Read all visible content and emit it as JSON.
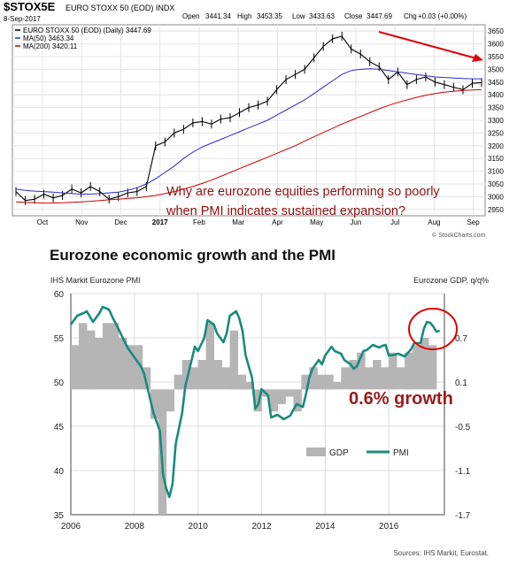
{
  "chart_data": [
    {
      "type": "line",
      "symbol": "$STOX5E",
      "instrument": "EURO STOXX 50 (EOD) INDX",
      "date": "8-Sep-2017",
      "ohlc": {
        "open_label": "Open",
        "open": "3441.34",
        "high_label": "High",
        "high": "3453.35",
        "low_label": "Low",
        "low": "3433.63",
        "close_label": "Close",
        "close": "3447.69",
        "chg_label": "Chg",
        "chg": "+0.03 (+0.00%)"
      },
      "legend": [
        {
          "label": "EURO STOXX 50 (EOD) (Daily) 3447.69",
          "color": "#000000"
        },
        {
          "label": "MA(50) 3463.34",
          "color": "#2a2ac8"
        },
        {
          "label": "MA(200) 3420.11",
          "color": "#cc0000"
        }
      ],
      "watermark": "© StockCharts.com",
      "annotation": [
        "Why are eurozone equities performing so poorly",
        "when PMI indicates sustained expansion?"
      ],
      "xtick_labels": [
        "Oct",
        "Nov",
        "Dec",
        "2017",
        "Feb",
        "Mar",
        "Apr",
        "May",
        "Jun",
        "Jul",
        "Aug",
        "Sep"
      ],
      "ytick_labels": [
        "3650",
        "3600",
        "3550",
        "3500",
        "3450",
        "3400",
        "3350",
        "3300",
        "3250",
        "3200",
        "3150",
        "3100",
        "3050",
        "3000",
        "2950"
      ],
      "ylim": [
        2925,
        3675
      ],
      "x": [
        0,
        1,
        2,
        3,
        4,
        5,
        6,
        7,
        8,
        9,
        10,
        11,
        12,
        13,
        14,
        15,
        16,
        17,
        18,
        19,
        20,
        21,
        22,
        23,
        24,
        25,
        26,
        27,
        28,
        29,
        30,
        31,
        32,
        33,
        34,
        35,
        36,
        37,
        38,
        39,
        40,
        41,
        42,
        43,
        44,
        45,
        46,
        47,
        48,
        49,
        50
      ],
      "series": [
        {
          "name": "EURO STOXX 50",
          "values": [
            3020,
            2985,
            2990,
            3010,
            2995,
            3005,
            3030,
            3015,
            3040,
            3020,
            2990,
            3000,
            3015,
            3020,
            3040,
            3200,
            3215,
            3250,
            3265,
            3290,
            3295,
            3285,
            3305,
            3310,
            3330,
            3350,
            3360,
            3375,
            3420,
            3460,
            3480,
            3500,
            3545,
            3590,
            3620,
            3630,
            3580,
            3560,
            3530,
            3510,
            3460,
            3490,
            3440,
            3460,
            3470,
            3450,
            3440,
            3430,
            3420,
            3445,
            3448
          ]
        },
        {
          "name": "MA(50)",
          "values": [
            3030,
            3025,
            3022,
            3020,
            3018,
            3015,
            3012,
            3010,
            3010,
            3012,
            3015,
            3018,
            3025,
            3035,
            3050,
            3070,
            3095,
            3120,
            3150,
            3175,
            3195,
            3210,
            3225,
            3240,
            3255,
            3270,
            3285,
            3300,
            3320,
            3340,
            3360,
            3380,
            3405,
            3430,
            3455,
            3480,
            3495,
            3500,
            3502,
            3500,
            3495,
            3490,
            3485,
            3480,
            3475,
            3470,
            3468,
            3466,
            3464,
            3463,
            3463
          ]
        },
        {
          "name": "MA(200)",
          "values": [
            2980,
            2978,
            2976,
            2975,
            2975,
            2976,
            2978,
            2980,
            2982,
            2985,
            2988,
            2990,
            2993,
            2996,
            3000,
            3005,
            3012,
            3020,
            3030,
            3040,
            3052,
            3065,
            3080,
            3095,
            3110,
            3125,
            3140,
            3155,
            3170,
            3185,
            3200,
            3218,
            3235,
            3252,
            3268,
            3285,
            3300,
            3315,
            3330,
            3345,
            3358,
            3370,
            3380,
            3390,
            3398,
            3405,
            3410,
            3414,
            3417,
            3419,
            3420
          ]
        }
      ]
    },
    {
      "type": "bar",
      "title": "Eurozone economic growth and the PMI",
      "left_axis_label": "IHS Markit  Eurozone PMI",
      "right_axis_label": "Eurozone GDP, q/q%",
      "annotation": "0.6% growth",
      "source": "Sources: IHS Markit, Eurostat.",
      "legend": [
        {
          "label": "GDP",
          "color": "#b5b5b5"
        },
        {
          "label": "PMI",
          "color": "#1a8a7e"
        }
      ],
      "left_ticks": [
        "60",
        "55",
        "50",
        "45",
        "40",
        "35"
      ],
      "right_ticks": [
        "0.7",
        "0.1",
        "-0.5",
        "-1.1",
        "-1.7"
      ],
      "xtick_labels": [
        "2006",
        "2008",
        "2010",
        "2012",
        "2014",
        "2016"
      ],
      "pmi_ylim": [
        35,
        60
      ],
      "gdp_ylim": [
        -1.7,
        1.3
      ],
      "x_start": 2006,
      "x_end": 2017.75,
      "series": [
        {
          "name": "GDP",
          "values": [
            0.6,
            0.9,
            0.8,
            0.7,
            0.9,
            0.9,
            0.7,
            0.6,
            0.6,
            0.3,
            -0.4,
            -1.7,
            -0.3,
            0.2,
            0.4,
            0.3,
            0.4,
            0.9,
            0.4,
            0.3,
            0.8,
            0.2,
            0.1,
            -0.3,
            -0.1,
            -0.3,
            -0.2,
            -0.1,
            -0.3,
            0.2,
            0.3,
            0.2,
            0.2,
            0.1,
            0.3,
            0.4,
            0.5,
            0.3,
            0.4,
            0.3,
            0.5,
            0.3,
            0.5,
            0.6,
            0.7,
            0.6
          ]
        },
        {
          "name": "PMI",
          "values": [
            [
              2006.0,
              56.5
            ],
            [
              2006.2,
              57.5
            ],
            [
              2006.4,
              57.8
            ],
            [
              2006.5,
              58.0
            ],
            [
              2006.7,
              56.8
            ],
            [
              2006.9,
              57.8
            ],
            [
              2007.0,
              58.5
            ],
            [
              2007.2,
              58.2
            ],
            [
              2007.3,
              57.4
            ],
            [
              2007.5,
              56.0
            ],
            [
              2007.7,
              54.5
            ],
            [
              2007.8,
              53.8
            ],
            [
              2008.0,
              52.8
            ],
            [
              2008.2,
              51.8
            ],
            [
              2008.3,
              51.0
            ],
            [
              2008.5,
              48.0
            ],
            [
              2008.6,
              46.5
            ],
            [
              2008.8,
              44.5
            ],
            [
              2008.9,
              39.5
            ],
            [
              2009.0,
              38.0
            ],
            [
              2009.1,
              37.0
            ],
            [
              2009.2,
              38.5
            ],
            [
              2009.3,
              43.0
            ],
            [
              2009.5,
              46.5
            ],
            [
              2009.6,
              49.5
            ],
            [
              2009.8,
              52.5
            ],
            [
              2009.9,
              54.0
            ],
            [
              2010.0,
              53.5
            ],
            [
              2010.2,
              55.0
            ],
            [
              2010.3,
              57.0
            ],
            [
              2010.5,
              56.5
            ],
            [
              2010.6,
              55.5
            ],
            [
              2010.8,
              54.5
            ],
            [
              2010.9,
              55.5
            ],
            [
              2011.0,
              57.5
            ],
            [
              2011.2,
              58.0
            ],
            [
              2011.3,
              57.2
            ],
            [
              2011.4,
              55.8
            ],
            [
              2011.5,
              53.0
            ],
            [
              2011.7,
              50.5
            ],
            [
              2011.8,
              47.0
            ],
            [
              2011.9,
              47.5
            ],
            [
              2012.0,
              49.2
            ],
            [
              2012.2,
              48.5
            ],
            [
              2012.3,
              46.0
            ],
            [
              2012.5,
              46.3
            ],
            [
              2012.7,
              45.8
            ],
            [
              2012.8,
              46.0
            ],
            [
              2012.9,
              46.2
            ],
            [
              2013.1,
              47.5
            ],
            [
              2013.3,
              47.2
            ],
            [
              2013.4,
              48.7
            ],
            [
              2013.5,
              50.5
            ],
            [
              2013.6,
              51.5
            ],
            [
              2013.8,
              52.5
            ],
            [
              2013.9,
              52.0
            ],
            [
              2014.0,
              53.0
            ],
            [
              2014.2,
              54.0
            ],
            [
              2014.3,
              53.5
            ],
            [
              2014.5,
              53.2
            ],
            [
              2014.6,
              52.5
            ],
            [
              2014.8,
              52.0
            ],
            [
              2014.9,
              51.5
            ],
            [
              2015.0,
              51.8
            ],
            [
              2015.2,
              53.5
            ],
            [
              2015.3,
              53.6
            ],
            [
              2015.5,
              54.2
            ],
            [
              2015.7,
              53.9
            ],
            [
              2015.8,
              54.1
            ],
            [
              2015.9,
              54.2
            ],
            [
              2016.0,
              53.0
            ],
            [
              2016.2,
              53.1
            ],
            [
              2016.3,
              53.2
            ],
            [
              2016.5,
              52.9
            ],
            [
              2016.7,
              53.7
            ],
            [
              2016.8,
              54.4
            ],
            [
              2016.9,
              54.4
            ],
            [
              2017.0,
              54.4
            ],
            [
              2017.1,
              56.0
            ],
            [
              2017.2,
              56.8
            ],
            [
              2017.3,
              56.7
            ],
            [
              2017.4,
              56.3
            ],
            [
              2017.5,
              55.7
            ],
            [
              2017.6,
              55.8
            ]
          ]
        }
      ]
    }
  ]
}
